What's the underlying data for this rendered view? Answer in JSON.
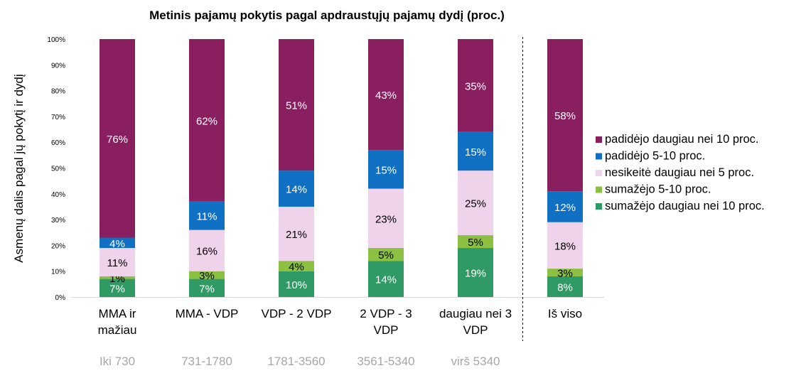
{
  "chart_data": {
    "type": "bar",
    "stacked": true,
    "title": "Metinis pajamų pokytis pagal apdraustųjų pajamų dydį (proc.)",
    "ylabel": "Asmenų dalis pagal jų pokytį ir dydį",
    "xlabel": "",
    "ylim": [
      0,
      100
    ],
    "yticks": [
      "0%",
      "10%",
      "20%",
      "30%",
      "40%",
      "50%",
      "60%",
      "70%",
      "80%",
      "90%",
      "100%"
    ],
    "categories": [
      [
        "MMA ir",
        "mažiau"
      ],
      [
        "MMA - VDP"
      ],
      [
        "VDP - 2 VDP"
      ],
      [
        "2 VDP - 3",
        "VDP"
      ],
      [
        "daugiau nei 3",
        "VDP"
      ],
      [
        "Iš viso"
      ]
    ],
    "subcategories": [
      "Iki 730",
      "731-1780",
      "1781-3560",
      "3561-5340",
      "virš 5340",
      ""
    ],
    "legend_position": "right",
    "series": [
      {
        "name": "sumažėjo daugiau nei 10 proc.",
        "color": "#2f9a64",
        "label_color": "#ffffff",
        "values": [
          7,
          7,
          10,
          14,
          19,
          8
        ]
      },
      {
        "name": "sumažėjo 5-10 proc.",
        "color": "#8cc043",
        "label_color": "#000000",
        "values": [
          1,
          3,
          4,
          5,
          5,
          3
        ]
      },
      {
        "name": "nesikeitė daugiau nei 5 proc.",
        "color": "#eed3ea",
        "label_color": "#000000",
        "values": [
          11,
          16,
          21,
          23,
          25,
          18
        ]
      },
      {
        "name": "padidėjo 5-10 proc.",
        "color": "#1070c4",
        "label_color": "#ffffff",
        "values": [
          4,
          11,
          14,
          15,
          15,
          12
        ]
      },
      {
        "name": "padidėjo daugiau nei 10 proc.",
        "color": "#8a1f5f",
        "label_color": "#ffffff",
        "values": [
          76,
          62,
          51,
          43,
          35,
          58
        ]
      }
    ],
    "legend_order": [
      4,
      3,
      2,
      1,
      0
    ]
  }
}
